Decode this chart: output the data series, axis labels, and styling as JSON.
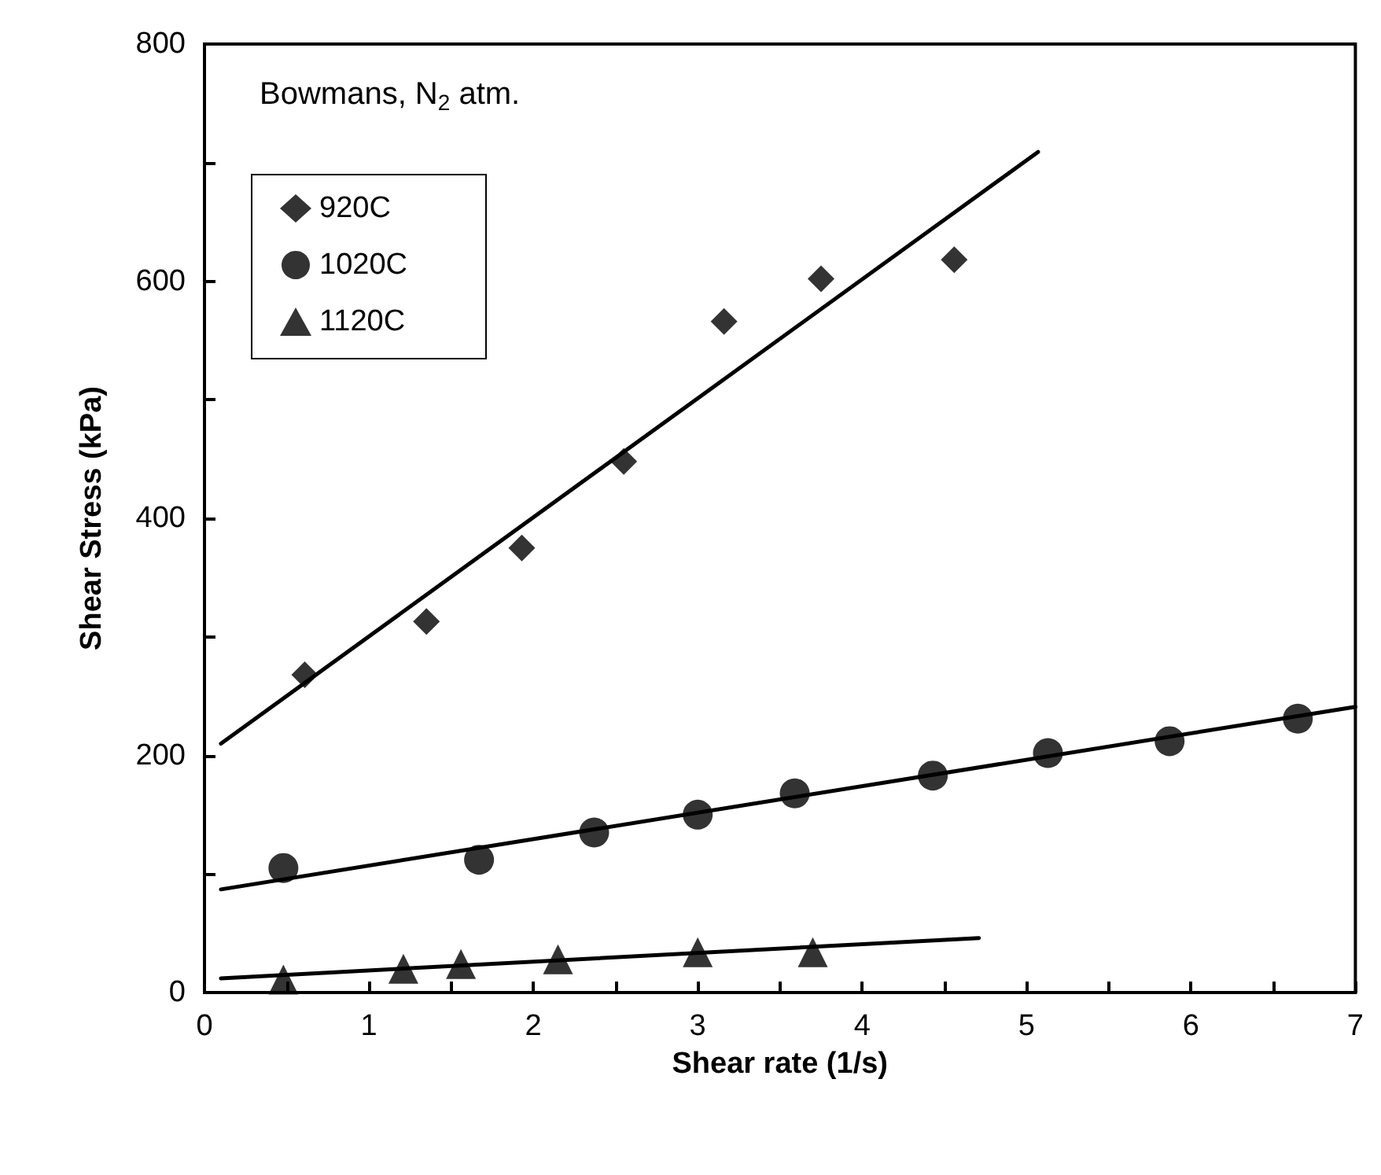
{
  "chart_data": {
    "type": "scatter",
    "xlabel": "Shear rate (1/s)",
    "ylabel": "Shear Stress (kPa)",
    "annotations": [
      "Bowmans, N$_{2}$ atm."
    ],
    "xlim": [
      0,
      7
    ],
    "ylim": [
      0,
      800
    ],
    "xticks": [
      0,
      {
        "value": 0.5,
        "label": null
      },
      1,
      {
        "value": 1.5,
        "label": null
      },
      2,
      {
        "value": 2.5,
        "label": null
      },
      3,
      {
        "value": 3.5,
        "label": null
      },
      4,
      {
        "value": 4.5,
        "label": null
      },
      5,
      {
        "value": 5.5,
        "label": null
      },
      6,
      {
        "value": 6.5,
        "label": null
      },
      7
    ],
    "yticks": [
      0,
      {
        "value": 100,
        "label": null
      },
      200,
      {
        "value": 300,
        "label": null
      },
      400,
      {
        "value": 500,
        "label": null
      },
      600,
      {
        "value": 700,
        "label": null
      },
      800
    ],
    "grid": false,
    "legend": "top left",
    "series": [
      {
        "name": "920C",
        "color": "#000000",
        "marker": "diamond",
        "x": [
          0.61,
          1.35,
          1.93,
          2.55,
          3.16,
          3.75,
          4.56
        ],
        "values": [
          268,
          313,
          375,
          448,
          566,
          602,
          618
        ]
      },
      {
        "name": "1020C",
        "color": "#000000",
        "marker": "circle",
        "x": [
          0.48,
          1.67,
          2.37,
          3.0,
          3.59,
          4.43,
          5.13,
          5.87,
          6.65
        ],
        "values": [
          105,
          112,
          135,
          150,
          168,
          183,
          202,
          212,
          231
        ]
      },
      {
        "name": "1120C",
        "color": "#000000",
        "marker": "triangle",
        "x": [
          0.48,
          1.21,
          1.56,
          2.15,
          3.0,
          3.7
        ],
        "values": [
          11,
          20,
          24,
          28,
          34,
          34
        ]
      },
      {
        "type": "line",
        "color": "#000000",
        "marker": "none",
        "x": [
          0.1,
          5.07
        ],
        "values": [
          210,
          709
        ]
      },
      {
        "type": "line",
        "color": "#000000",
        "marker": "none",
        "x": [
          0.1,
          7
        ],
        "values": [
          87,
          241
        ]
      },
      {
        "type": "line",
        "color": "#000000",
        "marker": "none",
        "x": [
          0.1,
          4.71
        ],
        "values": [
          12,
          46
        ]
      }
    ]
  }
}
